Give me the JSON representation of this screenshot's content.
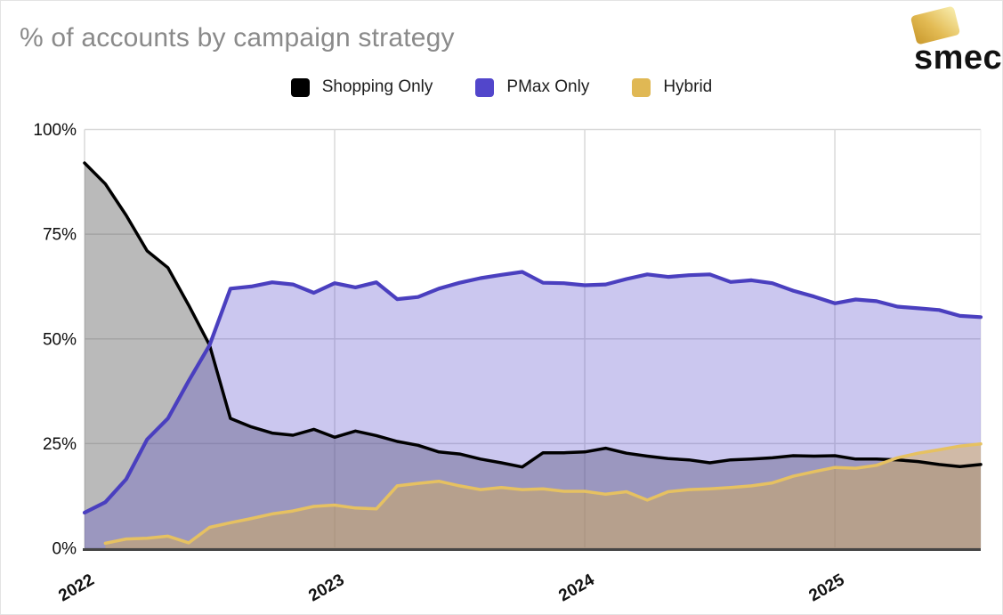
{
  "header": {
    "title": "% of accounts by campaign strategy"
  },
  "logo": {
    "text": "smec",
    "badge_colors": [
      "#c9992d",
      "#f7eaa8"
    ]
  },
  "chart_data": {
    "type": "area",
    "title": "% of accounts by campaign strategy",
    "xlabel": "",
    "ylabel": "",
    "ylim": [
      0,
      100
    ],
    "grid": true,
    "legend_position": "top-center",
    "x_interval": "monthly",
    "x_ticks": [
      {
        "index": 0,
        "label": "2022"
      },
      {
        "index": 12,
        "label": "2023"
      },
      {
        "index": 24,
        "label": "2024"
      },
      {
        "index": 36,
        "label": "2025"
      }
    ],
    "y_ticks": [
      {
        "value": 0,
        "label": "0%"
      },
      {
        "value": 25,
        "label": "25%"
      },
      {
        "value": 50,
        "label": "50%"
      },
      {
        "value": 75,
        "label": "75%"
      },
      {
        "value": 100,
        "label": "100%"
      }
    ],
    "series": [
      {
        "id": "shopping-only",
        "name": "Shopping Only",
        "color": "#000000",
        "swatch": "#000000",
        "fill": "rgba(90,90,90,0.42)",
        "values": [
          92,
          87,
          79.5,
          71,
          67,
          58,
          48.5,
          31,
          29,
          27.5,
          27,
          28.4,
          26.5,
          28,
          26.9,
          25.5,
          24.6,
          23,
          22.5,
          21.3,
          20.4,
          19.4,
          22.8,
          22.8,
          23,
          23.9,
          22.7,
          22,
          21.4,
          21.1,
          20.4,
          21.1,
          21.3,
          21.6,
          22.1,
          22,
          22.1,
          21.3,
          21.3,
          21.1,
          20.7,
          20,
          19.5,
          20
        ]
      },
      {
        "id": "pmax-only",
        "name": "PMax Only",
        "color": "#4a3fbf",
        "swatch": "#5246cb",
        "fill": "rgba(82,70,203,0.30)",
        "values": [
          8.5,
          11,
          16.5,
          26,
          31,
          40,
          48.5,
          62,
          62.5,
          63.5,
          63,
          61,
          63.3,
          62.3,
          63.5,
          59.5,
          60,
          62,
          63.4,
          64.5,
          65.3,
          66,
          63.4,
          63.3,
          62.8,
          63,
          64.3,
          65.4,
          64.8,
          65.2,
          65.4,
          63.6,
          64,
          63.3,
          61.5,
          60.1,
          58.5,
          59.4,
          59,
          57.7,
          57.3,
          56.9,
          55.5,
          55.2
        ]
      },
      {
        "id": "hybrid",
        "name": "Hybrid",
        "color": "#e6c161",
        "swatch": "#e0b854",
        "fill": "rgba(214,170,80,0.45)",
        "values": [
          null,
          1.2,
          2.2,
          2.4,
          2.9,
          1.3,
          5,
          6.1,
          7.1,
          8.2,
          8.9,
          10,
          10.3,
          9.6,
          9.4,
          14.9,
          15.5,
          16,
          14.9,
          14,
          14.5,
          14,
          14.2,
          13.6,
          13.6,
          12.9,
          13.5,
          11.5,
          13.5,
          14,
          14.2,
          14.5,
          14.9,
          15.6,
          17.2,
          18.3,
          19.3,
          19.1,
          19.8,
          21.6,
          22.7,
          23.5,
          24.4,
          24.9
        ]
      }
    ]
  }
}
